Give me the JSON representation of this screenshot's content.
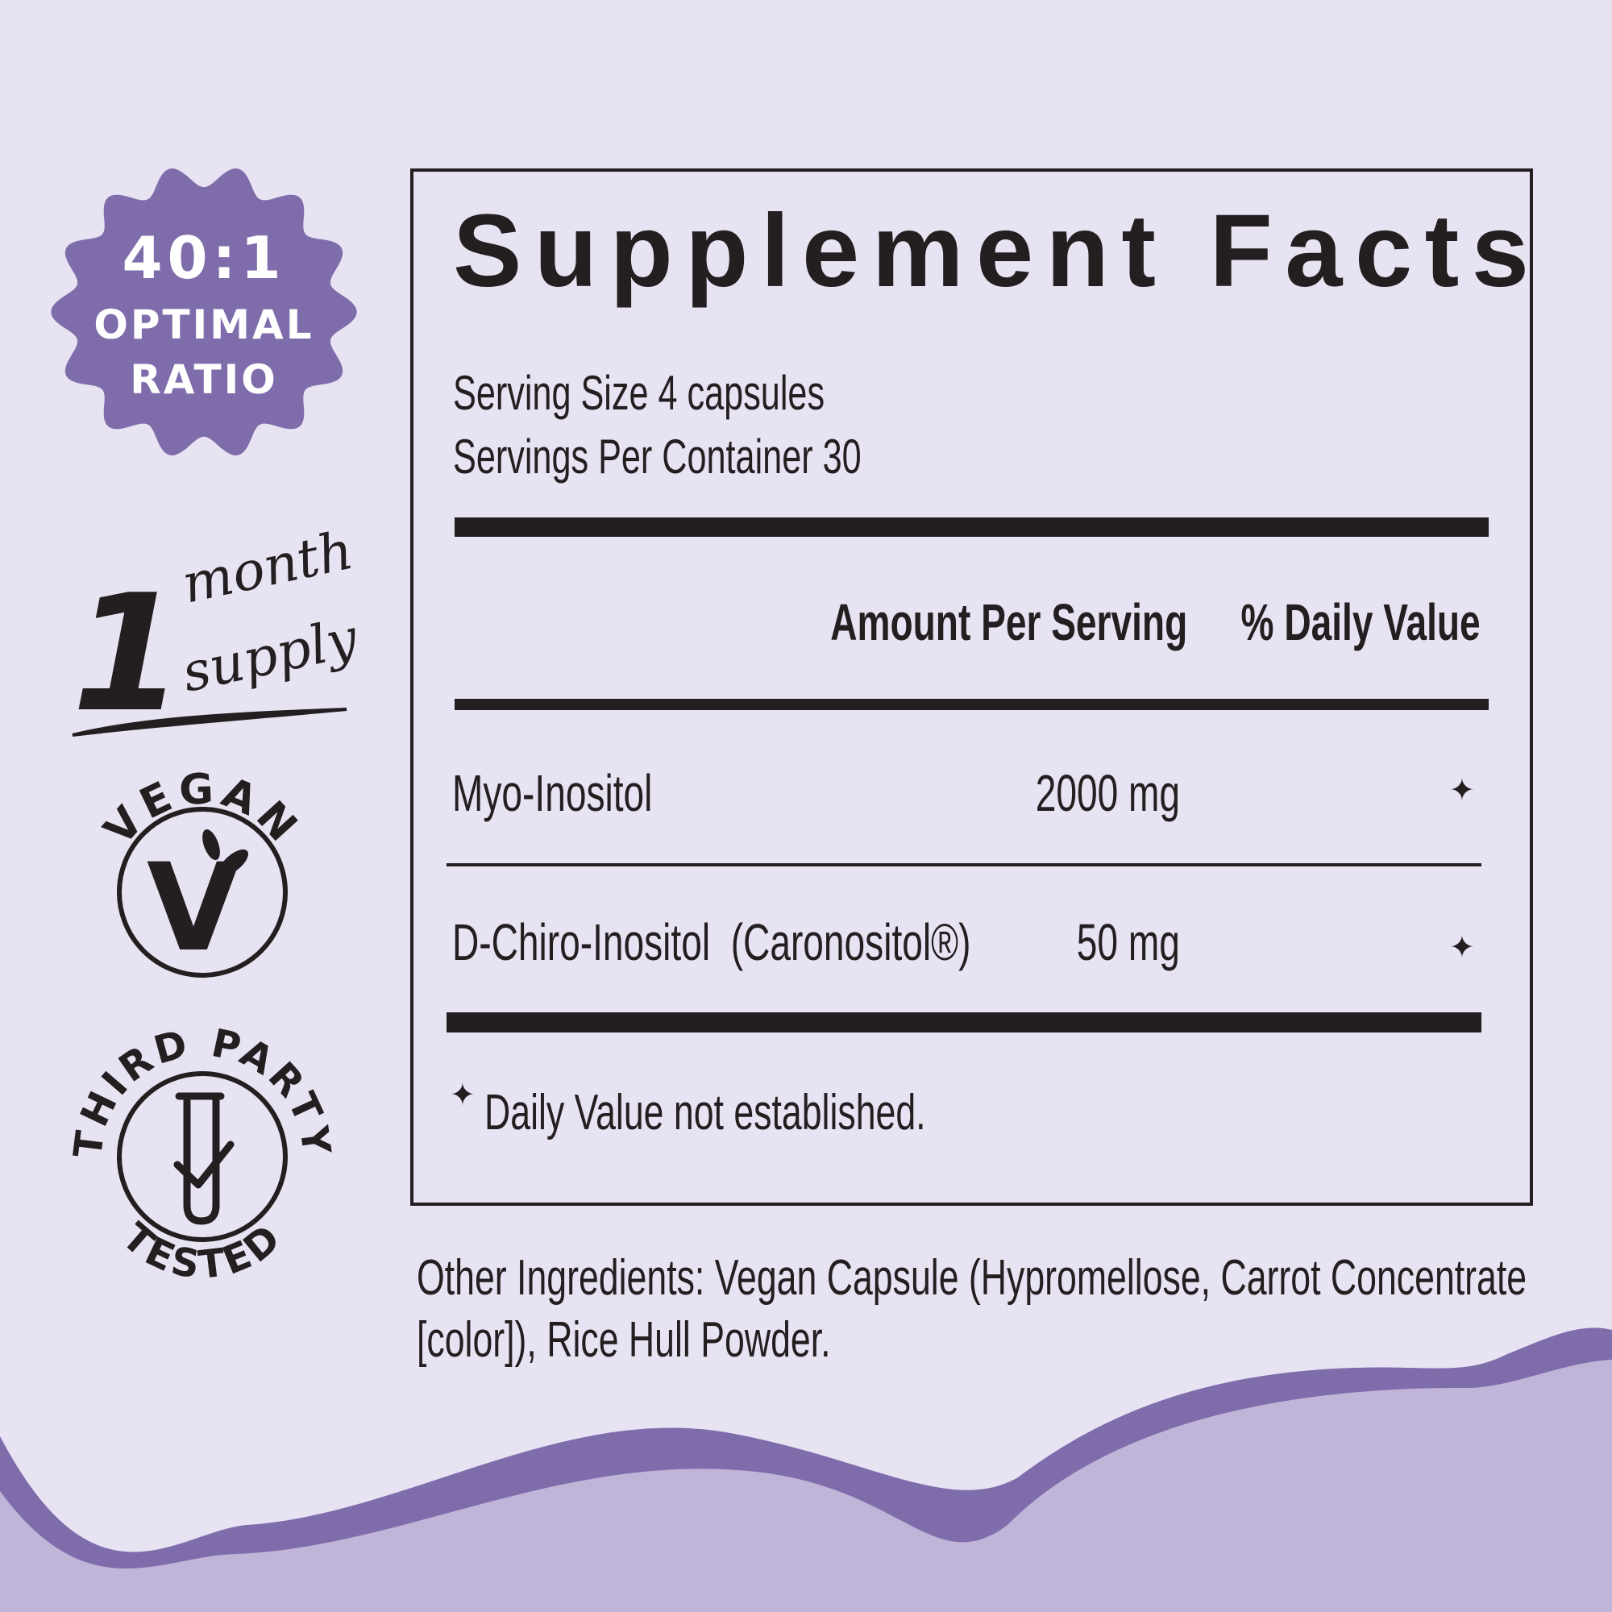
{
  "colors": {
    "background": "#e7e3f3",
    "accent": "#7f6dab",
    "accent_light": "#c0b4d9",
    "text": "#231f20"
  },
  "badges": {
    "ratio": {
      "line1": "40:1",
      "line2": "OPTIMAL",
      "line3": "RATIO"
    },
    "supply": {
      "number": "1",
      "word1": "month",
      "word2": "supply"
    },
    "vegan": {
      "label": "VEGAN",
      "letter": "V",
      "icon": "leaf-icon"
    },
    "third_party": {
      "top": "THIRD PARTY",
      "bottom": "TESTED",
      "icon": "test-tube-check-icon"
    }
  },
  "facts": {
    "title": "Supplement Facts",
    "serving_size": "Serving Size 4 capsules",
    "servings_per_container": "Servings Per Container 30",
    "col_amount": "Amount Per Serving",
    "col_dv": "% Daily Value",
    "rows": [
      {
        "name": "Myo-Inositol",
        "amount": "2000 mg",
        "dv": "✦"
      },
      {
        "name": "D-Chiro-Inositol  (Caronositol®)",
        "amount": "50 mg",
        "dv": "✦"
      }
    ],
    "footnote_symbol": "✦",
    "footnote": "Daily Value not established."
  },
  "other_ingredients": {
    "line1": "Other Ingredients: Vegan Capsule (Hypromellose, Carrot Concentrate",
    "line2": "[color]), Rice Hull Powder."
  }
}
